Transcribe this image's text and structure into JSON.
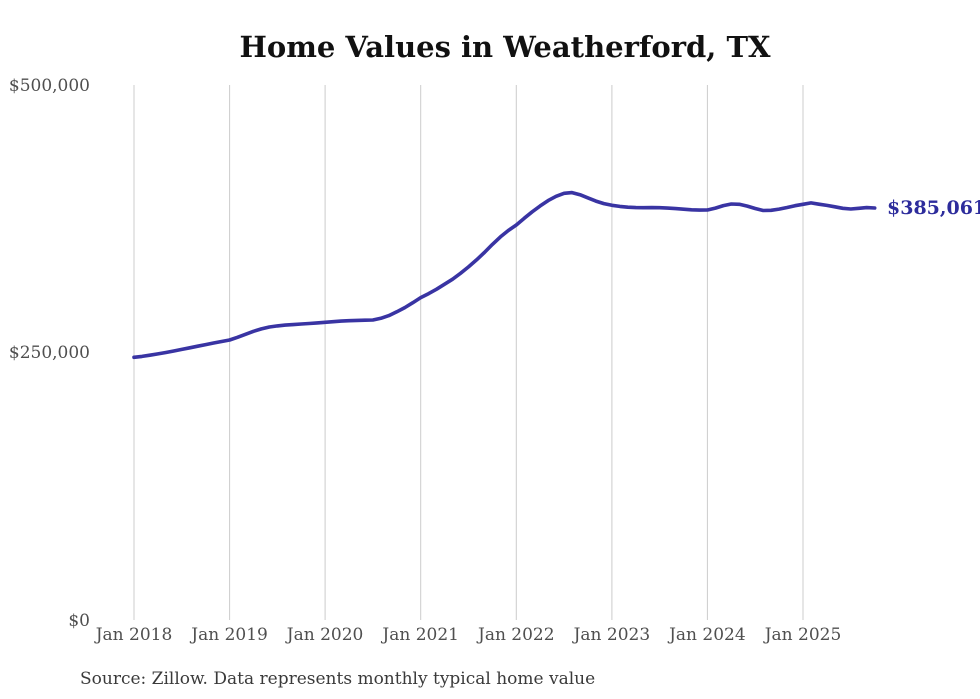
{
  "title": "Home Values in Weatherford, TX",
  "source_note": "Source: Zillow. Data represents monthly typical home value",
  "end_label": "$385,061",
  "colors": {
    "line": "#3934a3",
    "end_label": "#2d2c9c",
    "grid": "#cccccc",
    "tick_text": "#4f4f4f",
    "title_text": "#111111",
    "source_text": "#3a3a3a",
    "background": "#ffffff"
  },
  "chart_data": {
    "type": "line",
    "title": "Home Values in Weatherford, TX",
    "xlabel": "",
    "ylabel": "",
    "ylim": [
      0,
      500000
    ],
    "grid": "vertical-only",
    "legend_position": "none",
    "y_ticks": [
      {
        "value": 0,
        "label": "$0"
      },
      {
        "value": 250000,
        "label": "$250,000"
      },
      {
        "value": 500000,
        "label": "$500,000"
      }
    ],
    "x_tick_labels": [
      "Jan 2018",
      "Jan 2019",
      "Jan 2020",
      "Jan 2021",
      "Jan 2022",
      "Jan 2023",
      "Jan 2024",
      "Jan 2025"
    ],
    "series": [
      {
        "name": "Monthly typical home value",
        "start_month": "Jan 2018",
        "end_month": "Oct 2025",
        "values": [
          245500,
          246400,
          247500,
          248700,
          250000,
          251400,
          252900,
          254400,
          255900,
          257400,
          258900,
          260300,
          261700,
          264200,
          267000,
          269800,
          272100,
          273800,
          274900,
          275600,
          276100,
          276600,
          277100,
          277700,
          278200,
          278800,
          279300,
          279700,
          280000,
          280200,
          280400,
          282000,
          284500,
          288000,
          292000,
          296500,
          301300,
          305000,
          309200,
          313800,
          318500,
          324000,
          330000,
          336500,
          343500,
          351000,
          358000,
          364000,
          369200,
          375500,
          381500,
          387000,
          392000,
          396000,
          398800,
          399400,
          397500,
          394500,
          391500,
          389200,
          387600,
          386500,
          385800,
          385400,
          385300,
          385400,
          385300,
          385000,
          384500,
          383900,
          383400,
          383100,
          383200,
          385000,
          387300,
          388800,
          388500,
          386800,
          384600,
          382700,
          382900,
          384000,
          385500,
          387200,
          388500,
          389800,
          388600,
          387500,
          386200,
          384800,
          384100,
          384800,
          385400,
          385061
        ]
      }
    ],
    "last_value": 385061,
    "last_value_label": "$385,061"
  }
}
